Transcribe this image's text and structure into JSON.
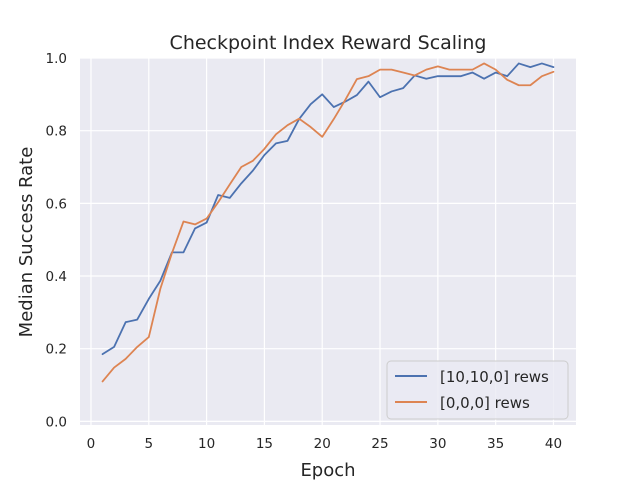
{
  "chart_data": {
    "type": "line",
    "title": "Checkpoint Index Reward Scaling",
    "xlabel": "Epoch",
    "ylabel": "Median Success Rate",
    "xlim": [
      -0.95,
      41.95
    ],
    "ylim": [
      -0.01,
      1.0
    ],
    "xticks": [
      0,
      5,
      10,
      15,
      20,
      25,
      30,
      35,
      40
    ],
    "xtick_labels": [
      "0",
      "5",
      "10",
      "15",
      "20",
      "25",
      "30",
      "35",
      "40"
    ],
    "yticks": [
      0.0,
      0.2,
      0.4,
      0.6,
      0.8,
      1.0
    ],
    "ytick_labels": [
      "0.0",
      "0.2",
      "0.4",
      "0.6",
      "0.8",
      "1.0"
    ],
    "grid": true,
    "legend_position": "lower-right",
    "x": [
      1,
      2,
      3,
      4,
      5,
      6,
      7,
      8,
      9,
      10,
      11,
      12,
      13,
      14,
      15,
      16,
      17,
      18,
      19,
      20,
      21,
      22,
      23,
      24,
      25,
      26,
      27,
      28,
      29,
      30,
      31,
      32,
      33,
      34,
      35,
      36,
      37,
      38,
      39,
      40
    ],
    "series": [
      {
        "name": "[10,10,0] rews",
        "color": "#4c72b0",
        "values": [
          0.185,
          0.205,
          0.273,
          0.28,
          0.337,
          0.387,
          0.465,
          0.465,
          0.531,
          0.547,
          0.623,
          0.615,
          0.655,
          0.69,
          0.733,
          0.765,
          0.772,
          0.832,
          0.873,
          0.9,
          0.865,
          0.88,
          0.898,
          0.935,
          0.892,
          0.908,
          0.917,
          0.952,
          0.943,
          0.95,
          0.95,
          0.95,
          0.96,
          0.943,
          0.96,
          0.95,
          0.985,
          0.975,
          0.985,
          0.975
        ]
      },
      {
        "name": "[0,0,0] rews",
        "color": "#dd8452",
        "values": [
          0.11,
          0.148,
          0.172,
          0.205,
          0.232,
          0.365,
          0.463,
          0.55,
          0.542,
          0.558,
          0.603,
          0.652,
          0.7,
          0.717,
          0.75,
          0.79,
          0.815,
          0.833,
          0.81,
          0.783,
          0.832,
          0.885,
          0.942,
          0.95,
          0.968,
          0.968,
          0.96,
          0.952,
          0.968,
          0.977,
          0.968,
          0.968,
          0.968,
          0.985,
          0.968,
          0.94,
          0.925,
          0.925,
          0.95,
          0.962
        ]
      }
    ]
  }
}
